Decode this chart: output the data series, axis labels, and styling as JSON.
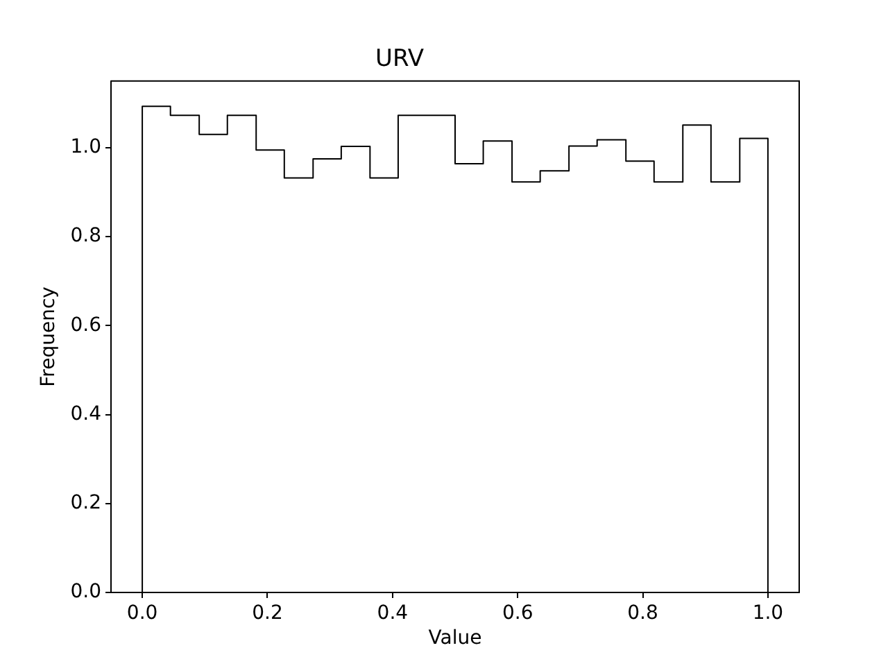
{
  "chart_data": {
    "type": "histogram",
    "title": "URV",
    "xlabel": "Value",
    "ylabel": "Frequency",
    "bins": [
      0,
      0.045,
      0.091,
      0.136,
      0.182,
      0.227,
      0.273,
      0.318,
      0.364,
      0.409,
      0.455,
      0.5,
      0.545,
      0.591,
      0.636,
      0.682,
      0.727,
      0.773,
      0.818,
      0.864,
      0.909,
      0.955,
      1
    ],
    "values": [
      1.093,
      1.073,
      1.03,
      1.073,
      0.995,
      0.932,
      0.975,
      1.003,
      0.932,
      1.073,
      1.073,
      0.964,
      1.015,
      0.923,
      0.948,
      1.004,
      1.018,
      0.97,
      0.923,
      1.051,
      0.923,
      1.021
    ],
    "color": "#000000",
    "xlim": [
      -0.05,
      1.05
    ],
    "ylim": [
      0,
      1.15
    ],
    "xticks": [
      {
        "value": 0,
        "label": "0.0"
      },
      0.2,
      0.4,
      0.6,
      0.8,
      {
        "value": 1,
        "label": "1.0"
      }
    ],
    "yticks": [
      {
        "value": 0,
        "label": "0.0"
      },
      0.2,
      0.4,
      0.6,
      0.8,
      {
        "value": 1,
        "label": "1.0"
      }
    ]
  }
}
